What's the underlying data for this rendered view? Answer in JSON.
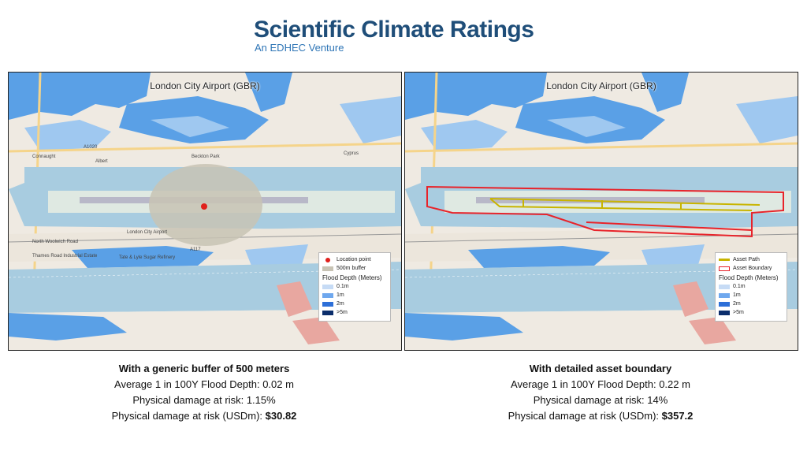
{
  "brand": {
    "title": "Scientific Climate Ratings",
    "subtitle": "An EDHEC Venture"
  },
  "colors": {
    "deep_water": "#5aa0e6",
    "shallow_water": "#9fc8f0",
    "thames": "#a8cce0",
    "land": "#f0ece4",
    "buffer": "#c8c3b4",
    "boundary": "#e8232a",
    "path": "#c8b400",
    "depth_01": "#c6dbf5",
    "depth_1": "#6fa8ee",
    "depth_2": "#2d6fd8",
    "depth_5": "#0b2d6b"
  },
  "maps": [
    {
      "title": "London City Airport (GBR)",
      "legend": {
        "items": [
          {
            "label": "Location point"
          },
          {
            "label": "500m buffer"
          }
        ],
        "flood_heading": "Flood Depth (Meters)",
        "flood_items": [
          "0.1m",
          "1m",
          "2m",
          ">5m"
        ]
      },
      "caption": {
        "heading": "With a generic buffer of 500 meters",
        "line1": "Average 1 in 100Y Flood Depth: 0.02 m",
        "line2": "Physical damage at risk: 1.15%",
        "line3_label": "Physical damage at risk (USDm): ",
        "line3_value": "$30.82"
      }
    },
    {
      "title": "London City Airport (GBR)",
      "legend": {
        "items": [
          {
            "label": "Asset Path"
          },
          {
            "label": "Asset Boundary"
          }
        ],
        "flood_heading": "Flood Depth (Meters)",
        "flood_items": [
          "0.1m",
          "1m",
          "2m",
          ">5m"
        ]
      },
      "caption": {
        "heading": "With detailed asset boundary",
        "line1": "Average 1 in 100Y Flood Depth: 0.22 m",
        "line2": "Physical damage at risk: 14%",
        "line3_label": "Physical damage at risk (USDm): ",
        "line3_value": "$357.2"
      }
    }
  ],
  "map_labels": [
    "Connaught",
    "Albert",
    "Beckton Park",
    "Cyprus",
    "North Woolwich Road",
    "London City Airport",
    "Thames Road Industrial Estate",
    "Tate & Lyle Sugar Refinery",
    "A1020",
    "A117"
  ]
}
